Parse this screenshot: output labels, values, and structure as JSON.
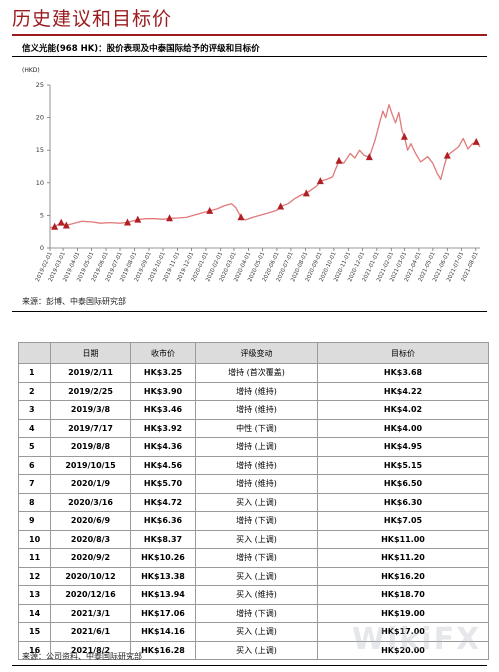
{
  "page": {
    "section_title": "历史建议和目标价",
    "chart_title": "信义光能(968 HK)：股价表现及中泰国际给予的评级和目标价",
    "chart_source": "来源：彭博、中泰国际研究部",
    "table_source": "来源：公司资料、中泰国际研究部",
    "watermark": "WikiFX"
  },
  "colors": {
    "brand": "#9c1b1f",
    "line": "#e07a7a",
    "marker": "#b01f24",
    "header_bg": "#dcdcdc"
  },
  "table": {
    "headers": [
      "",
      "日期",
      "收市价",
      "评级变动",
      "目标价"
    ],
    "rows": [
      [
        "1",
        "2019/2/11",
        "HK$3.25",
        "增持 (首次覆盖)",
        "HK$3.68"
      ],
      [
        "2",
        "2019/2/25",
        "HK$3.90",
        "增持 (维持)",
        "HK$4.22"
      ],
      [
        "3",
        "2019/3/8",
        "HK$3.46",
        "增持 (维持)",
        "HK$4.02"
      ],
      [
        "4",
        "2019/7/17",
        "HK$3.92",
        "中性 (下调)",
        "HK$4.00"
      ],
      [
        "5",
        "2019/8/8",
        "HK$4.36",
        "增持 (上调)",
        "HK$4.95"
      ],
      [
        "6",
        "2019/10/15",
        "HK$4.56",
        "增持 (维持)",
        "HK$5.15"
      ],
      [
        "7",
        "2020/1/9",
        "HK$5.70",
        "增持 (维持)",
        "HK$6.50"
      ],
      [
        "8",
        "2020/3/16",
        "HK$4.72",
        "买入 (上调)",
        "HK$6.30"
      ],
      [
        "9",
        "2020/6/9",
        "HK$6.36",
        "增持 (下调)",
        "HK$7.05"
      ],
      [
        "10",
        "2020/8/3",
        "HK$8.37",
        "买入 (上调)",
        "HK$11.00"
      ],
      [
        "11",
        "2020/9/2",
        "HK$10.26",
        "增持 (下调)",
        "HK$11.20"
      ],
      [
        "12",
        "2020/10/12",
        "HK$13.38",
        "买入 (上调)",
        "HK$16.20"
      ],
      [
        "13",
        "2020/12/16",
        "HK$13.94",
        "买入 (维持)",
        "HK$18.70"
      ],
      [
        "14",
        "2021/3/1",
        "HK$17.06",
        "增持 (下调)",
        "HK$19.00"
      ],
      [
        "15",
        "2021/6/1",
        "HK$14.16",
        "买入 (上调)",
        "HK$17.00"
      ],
      [
        "16",
        "2021/8/2",
        "HK$16.28",
        "买入 (上调)",
        "HK$20.00"
      ]
    ]
  },
  "chart_data": {
    "type": "line",
    "ylabel": "(HKD)",
    "ylim": [
      0,
      25
    ],
    "yticks": [
      0,
      5,
      10,
      15,
      20,
      25
    ],
    "grid": false,
    "xlim": [
      "2019-02-01",
      "2021-08-10"
    ],
    "xticks": [
      "2019-02-01",
      "2019-03-01",
      "2019-04-01",
      "2019-05-01",
      "2019-06-01",
      "2019-07-01",
      "2019-08-01",
      "2019-09-01",
      "2019-10-01",
      "2019-11-01",
      "2019-12-01",
      "2020-01-01",
      "2020-02-01",
      "2020-03-01",
      "2020-04-01",
      "2020-05-01",
      "2020-06-01",
      "2020-07-01",
      "2020-08-01",
      "2020-09-01",
      "2020-10-01",
      "2020-11-01",
      "2020-12-01",
      "2021-01-01",
      "2021-02-01",
      "2021-03-01",
      "2021-04-01",
      "2021-05-01",
      "2021-06-01",
      "2021-07-01",
      "2021-08-01"
    ],
    "series": [
      {
        "values": [
          [
            "2019-02-01",
            3.1
          ],
          [
            "2019-02-11",
            3.25
          ],
          [
            "2019-02-25",
            3.9
          ],
          [
            "2019-03-08",
            3.46
          ],
          [
            "2019-03-25",
            3.8
          ],
          [
            "2019-04-10",
            4.1
          ],
          [
            "2019-05-01",
            4.0
          ],
          [
            "2019-05-20",
            3.8
          ],
          [
            "2019-06-10",
            3.9
          ],
          [
            "2019-07-01",
            3.8
          ],
          [
            "2019-07-17",
            3.92
          ],
          [
            "2019-08-08",
            4.36
          ],
          [
            "2019-08-25",
            4.5
          ],
          [
            "2019-09-15",
            4.5
          ],
          [
            "2019-10-01",
            4.4
          ],
          [
            "2019-10-15",
            4.56
          ],
          [
            "2019-11-01",
            4.6
          ],
          [
            "2019-11-20",
            4.7
          ],
          [
            "2019-12-05",
            5.0
          ],
          [
            "2019-12-25",
            5.4
          ],
          [
            "2020-01-09",
            5.7
          ],
          [
            "2020-01-25",
            6.0
          ],
          [
            "2020-02-10",
            6.5
          ],
          [
            "2020-02-25",
            6.8
          ],
          [
            "2020-03-05",
            6.2
          ],
          [
            "2020-03-16",
            4.72
          ],
          [
            "2020-03-25",
            4.3
          ],
          [
            "2020-04-10",
            4.7
          ],
          [
            "2020-04-25",
            5.0
          ],
          [
            "2020-05-15",
            5.4
          ],
          [
            "2020-06-01",
            5.8
          ],
          [
            "2020-06-09",
            6.36
          ],
          [
            "2020-06-25",
            6.8
          ],
          [
            "2020-07-10",
            7.6
          ],
          [
            "2020-07-25",
            8.2
          ],
          [
            "2020-08-03",
            8.37
          ],
          [
            "2020-08-15",
            9.0
          ],
          [
            "2020-08-25",
            9.5
          ],
          [
            "2020-09-02",
            10.26
          ],
          [
            "2020-09-15",
            10.5
          ],
          [
            "2020-09-28",
            10.9
          ],
          [
            "2020-10-12",
            13.38
          ],
          [
            "2020-10-22",
            13.0
          ],
          [
            "2020-11-05",
            14.5
          ],
          [
            "2020-11-15",
            13.8
          ],
          [
            "2020-11-25",
            15.0
          ],
          [
            "2020-12-05",
            14.2
          ],
          [
            "2020-12-16",
            13.94
          ],
          [
            "2020-12-28",
            16.5
          ],
          [
            "2021-01-08",
            19.5
          ],
          [
            "2021-01-14",
            21.0
          ],
          [
            "2021-01-20",
            20.0
          ],
          [
            "2021-01-27",
            22.0
          ],
          [
            "2021-02-03",
            20.5
          ],
          [
            "2021-02-10",
            19.2
          ],
          [
            "2021-02-17",
            20.8
          ],
          [
            "2021-02-24",
            18.0
          ],
          [
            "2021-03-01",
            17.06
          ],
          [
            "2021-03-08",
            15.0
          ],
          [
            "2021-03-15",
            16.0
          ],
          [
            "2021-03-25",
            14.5
          ],
          [
            "2021-04-05",
            13.2
          ],
          [
            "2021-04-20",
            14.0
          ],
          [
            "2021-05-01",
            13.0
          ],
          [
            "2021-05-10",
            11.5
          ],
          [
            "2021-05-18",
            10.5
          ],
          [
            "2021-05-25",
            12.5
          ],
          [
            "2021-06-01",
            14.16
          ],
          [
            "2021-06-12",
            14.8
          ],
          [
            "2021-06-25",
            15.5
          ],
          [
            "2021-07-05",
            16.8
          ],
          [
            "2021-07-15",
            15.2
          ],
          [
            "2021-07-25",
            16.0
          ],
          [
            "2021-08-02",
            16.28
          ],
          [
            "2021-08-10",
            15.5
          ]
        ]
      }
    ],
    "markers": [
      [
        "2019-02-11",
        3.25
      ],
      [
        "2019-02-25",
        3.9
      ],
      [
        "2019-03-08",
        3.46
      ],
      [
        "2019-07-17",
        3.92
      ],
      [
        "2019-08-08",
        4.36
      ],
      [
        "2019-10-15",
        4.56
      ],
      [
        "2020-01-09",
        5.7
      ],
      [
        "2020-03-16",
        4.72
      ],
      [
        "2020-06-09",
        6.36
      ],
      [
        "2020-08-03",
        8.37
      ],
      [
        "2020-09-02",
        10.26
      ],
      [
        "2020-10-12",
        13.38
      ],
      [
        "2020-12-16",
        13.94
      ],
      [
        "2021-03-01",
        17.06
      ],
      [
        "2021-06-01",
        14.16
      ],
      [
        "2021-08-02",
        16.28
      ]
    ]
  }
}
